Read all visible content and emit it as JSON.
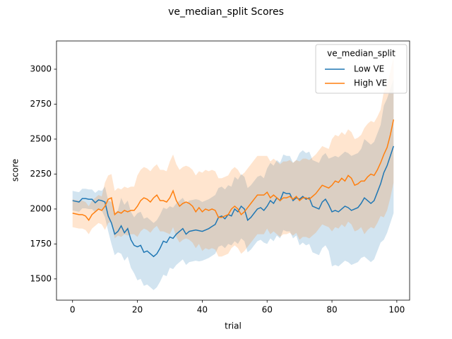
{
  "chart_data": {
    "type": "line",
    "title": "ve_median_split Scores",
    "xlabel": "trial",
    "ylabel": "score",
    "legend_title": "ve_median_split",
    "legend": "upper right",
    "xlim": [
      -4.95,
      103.95
    ],
    "ylim": [
      1348,
      3202
    ],
    "xticks": [
      0,
      20,
      40,
      60,
      80,
      100
    ],
    "yticks": [
      1500,
      1750,
      2000,
      2250,
      2500,
      2750,
      3000
    ],
    "x": [
      0,
      1,
      2,
      3,
      4,
      5,
      6,
      7,
      8,
      9,
      10,
      11,
      12,
      13,
      14,
      15,
      16,
      17,
      18,
      19,
      20,
      21,
      22,
      23,
      24,
      25,
      26,
      27,
      28,
      29,
      30,
      31,
      32,
      33,
      34,
      35,
      36,
      37,
      38,
      39,
      40,
      41,
      42,
      43,
      44,
      45,
      46,
      47,
      48,
      49,
      50,
      51,
      52,
      53,
      54,
      55,
      56,
      57,
      58,
      59,
      60,
      61,
      62,
      63,
      64,
      65,
      66,
      67,
      68,
      69,
      70,
      71,
      72,
      73,
      74,
      75,
      76,
      77,
      78,
      79,
      80,
      81,
      82,
      83,
      84,
      85,
      86,
      87,
      88,
      89,
      90,
      91,
      92,
      93,
      94,
      95,
      96,
      97,
      98,
      99
    ],
    "series": [
      {
        "name": "Low VE",
        "color": "#1f77b4",
        "values": [
          2060,
          2055,
          2050,
          2075,
          2075,
          2070,
          2070,
          2045,
          2065,
          2060,
          2050,
          1950,
          1900,
          1820,
          1840,
          1880,
          1830,
          1860,
          1780,
          1740,
          1730,
          1740,
          1690,
          1700,
          1680,
          1660,
          1680,
          1720,
          1770,
          1760,
          1800,
          1790,
          1820,
          1840,
          1860,
          1820,
          1840,
          1845,
          1850,
          1845,
          1840,
          1850,
          1860,
          1875,
          1890,
          1940,
          1950,
          1930,
          1960,
          1950,
          2000,
          1980,
          2020,
          2000,
          1920,
          1940,
          1970,
          2000,
          2010,
          1990,
          2020,
          2060,
          2040,
          2080,
          2060,
          2120,
          2110,
          2110,
          2060,
          2080,
          2070,
          2090,
          2070,
          2080,
          2020,
          2010,
          2000,
          2050,
          2070,
          2030,
          1980,
          1990,
          1980,
          2000,
          2020,
          2010,
          1990,
          2000,
          2010,
          2040,
          2080,
          2060,
          2040,
          2060,
          2120,
          2180,
          2260,
          2310,
          2380,
          2450
        ],
        "lower": [
          1990,
          1985,
          1980,
          2005,
          2005,
          2000,
          2000,
          1975,
          1995,
          1990,
          1940,
          1840,
          1750,
          1670,
          1690,
          1680,
          1630,
          1660,
          1580,
          1540,
          1490,
          1500,
          1450,
          1460,
          1440,
          1420,
          1440,
          1480,
          1530,
          1520,
          1580,
          1570,
          1600,
          1620,
          1640,
          1600,
          1620,
          1625,
          1630,
          1625,
          1630,
          1640,
          1650,
          1665,
          1680,
          1730,
          1740,
          1720,
          1750,
          1740,
          1770,
          1750,
          1790,
          1770,
          1690,
          1710,
          1740,
          1770,
          1780,
          1760,
          1750,
          1790,
          1770,
          1810,
          1790,
          1850,
          1840,
          1840,
          1790,
          1810,
          1740,
          1760,
          1740,
          1750,
          1690,
          1680,
          1670,
          1720,
          1740,
          1700,
          1590,
          1600,
          1590,
          1610,
          1630,
          1620,
          1600,
          1610,
          1620,
          1650,
          1660,
          1640,
          1620,
          1640,
          1700,
          1760,
          1780,
          1830,
          1900,
          1970
        ],
        "upper": [
          2130,
          2125,
          2120,
          2145,
          2145,
          2140,
          2140,
          2115,
          2135,
          2130,
          2160,
          2060,
          2050,
          1970,
          1990,
          2080,
          2030,
          2060,
          1980,
          1940,
          1970,
          1980,
          1930,
          1940,
          1920,
          1900,
          1920,
          1960,
          2010,
          2000,
          2020,
          2010,
          2040,
          2060,
          2080,
          2040,
          2060,
          2065,
          2070,
          2065,
          2050,
          2060,
          2070,
          2085,
          2100,
          2150,
          2160,
          2140,
          2170,
          2160,
          2230,
          2210,
          2250,
          2230,
          2150,
          2170,
          2200,
          2230,
          2240,
          2220,
          2290,
          2330,
          2310,
          2350,
          2330,
          2390,
          2380,
          2380,
          2330,
          2350,
          2400,
          2420,
          2400,
          2410,
          2350,
          2340,
          2330,
          2380,
          2400,
          2360,
          2370,
          2380,
          2370,
          2390,
          2410,
          2400,
          2380,
          2390,
          2400,
          2430,
          2500,
          2480,
          2460,
          2480,
          2540,
          2600,
          2740,
          2790,
          2860,
          2930
        ]
      },
      {
        "name": "High VE",
        "color": "#ff7f0e",
        "values": [
          1970,
          1965,
          1960,
          1960,
          1950,
          1920,
          1960,
          1980,
          2000,
          1990,
          2020,
          2070,
          2080,
          1960,
          1980,
          1970,
          1990,
          1980,
          1990,
          1990,
          2020,
          2060,
          2080,
          2070,
          2050,
          2080,
          2100,
          2060,
          2060,
          2050,
          2080,
          2130,
          2060,
          2020,
          2040,
          2050,
          2040,
          2020,
          1980,
          2010,
          1980,
          2000,
          1990,
          2000,
          1990,
          1940,
          1940,
          1950,
          1960,
          2000,
          2020,
          2000,
          1960,
          1980,
          2010,
          2040,
          2070,
          2100,
          2100,
          2100,
          2120,
          2080,
          2100,
          2080,
          2060,
          2080,
          2080,
          2090,
          2070,
          2090,
          2060,
          2080,
          2080,
          2070,
          2090,
          2110,
          2140,
          2170,
          2160,
          2150,
          2170,
          2200,
          2190,
          2220,
          2200,
          2240,
          2220,
          2170,
          2180,
          2200,
          2200,
          2230,
          2250,
          2240,
          2280,
          2330,
          2390,
          2440,
          2530,
          2640
        ],
        "lower": [
          1870,
          1865,
          1860,
          1860,
          1850,
          1820,
          1860,
          1880,
          1900,
          1890,
          1850,
          1900,
          1910,
          1790,
          1810,
          1800,
          1820,
          1810,
          1820,
          1820,
          1800,
          1840,
          1860,
          1850,
          1830,
          1860,
          1880,
          1840,
          1840,
          1830,
          1820,
          1870,
          1800,
          1760,
          1780,
          1790,
          1780,
          1760,
          1720,
          1750,
          1700,
          1720,
          1710,
          1720,
          1710,
          1660,
          1660,
          1670,
          1680,
          1720,
          1740,
          1720,
          1680,
          1700,
          1730,
          1760,
          1790,
          1820,
          1820,
          1820,
          1860,
          1820,
          1840,
          1820,
          1800,
          1820,
          1820,
          1830,
          1810,
          1830,
          1780,
          1800,
          1800,
          1790,
          1810,
          1830,
          1860,
          1890,
          1880,
          1870,
          1840,
          1870,
          1860,
          1890,
          1870,
          1910,
          1890,
          1840,
          1850,
          1870,
          1820,
          1850,
          1870,
          1860,
          1900,
          1950,
          1940,
          1990,
          2080,
          2190
        ],
        "upper": [
          2070,
          2065,
          2060,
          2060,
          2050,
          2020,
          2060,
          2080,
          2100,
          2090,
          2190,
          2240,
          2250,
          2130,
          2150,
          2140,
          2160,
          2150,
          2160,
          2160,
          2240,
          2280,
          2300,
          2290,
          2270,
          2300,
          2320,
          2280,
          2280,
          2270,
          2340,
          2390,
          2320,
          2280,
          2300,
          2310,
          2300,
          2280,
          2240,
          2270,
          2260,
          2280,
          2270,
          2280,
          2270,
          2220,
          2220,
          2230,
          2240,
          2280,
          2300,
          2280,
          2240,
          2260,
          2290,
          2320,
          2350,
          2380,
          2380,
          2380,
          2380,
          2340,
          2360,
          2340,
          2320,
          2340,
          2340,
          2350,
          2330,
          2350,
          2340,
          2360,
          2360,
          2350,
          2370,
          2390,
          2420,
          2450,
          2440,
          2430,
          2500,
          2530,
          2520,
          2550,
          2530,
          2570,
          2550,
          2500,
          2510,
          2530,
          2580,
          2610,
          2630,
          2620,
          2660,
          2710,
          2840,
          2890,
          2980,
          3090
        ]
      }
    ]
  }
}
